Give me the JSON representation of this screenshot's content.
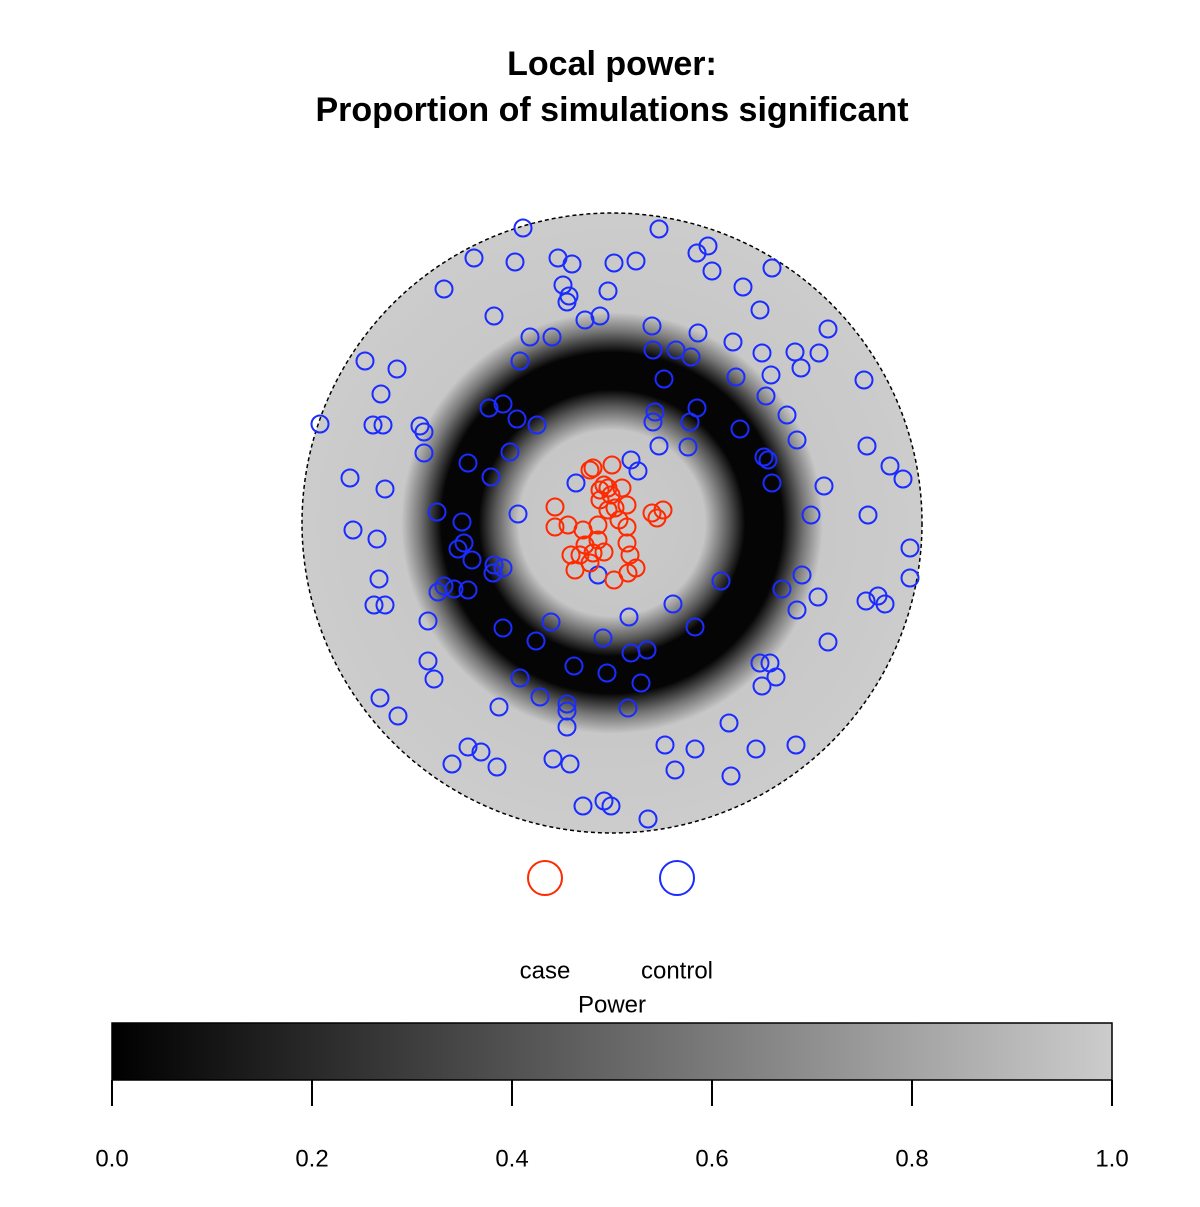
{
  "chart_data": {
    "type": "scatter",
    "title": "Local power:",
    "subtitle": "Proportion of simulations significant",
    "xlim": [
      -310,
      310
    ],
    "ylim": [
      -310,
      310
    ],
    "series": [
      {
        "name": "case",
        "color": "#ff2a00",
        "x": [
          -19,
          0,
          -8,
          10,
          -12,
          -1,
          -4,
          15,
          -57,
          -57,
          -44,
          -29,
          -14,
          7,
          15,
          40,
          51,
          45,
          -27,
          -14,
          -32,
          -41,
          -19,
          -8,
          15,
          18,
          2,
          16,
          24,
          -37,
          -22,
          -4,
          -12,
          3,
          -22
        ],
        "values": [
          55,
          58,
          38,
          35,
          23,
          28,
          13,
          18,
          16,
          -4,
          -2,
          -7,
          -2,
          3,
          -4,
          10,
          13,
          5,
          -22,
          -17,
          -32,
          -32,
          -30,
          -29,
          -20,
          -32,
          -57,
          -50,
          -45,
          -47,
          -40,
          35,
          33,
          15,
          53
        ]
      },
      {
        "name": "control",
        "color": "#1a2cff",
        "x": [
          -89,
          47,
          -138,
          -97,
          -54,
          -40,
          2,
          24,
          85,
          96,
          100,
          160,
          -49,
          -43,
          -168,
          -4,
          131,
          -118,
          -45,
          -27,
          -12,
          148,
          40,
          86,
          216,
          -82,
          -60,
          41,
          64,
          121,
          150,
          183,
          207,
          -247,
          -215,
          -92,
          52,
          79,
          124,
          159,
          189,
          252,
          -231,
          -123,
          -109,
          -95,
          -75,
          43,
          85,
          154,
          175,
          -292,
          -239,
          -229,
          -192,
          -188,
          41,
          78,
          128,
          185,
          255,
          -188,
          -144,
          -102,
          47,
          19,
          76,
          152,
          156,
          278,
          -262,
          -227,
          -121,
          -36,
          26,
          160,
          212,
          291,
          -175,
          -94,
          -150,
          199,
          256,
          -259,
          -235,
          -148,
          298,
          -140,
          -118,
          -119,
          -109,
          -233,
          -168,
          -174,
          -158,
          -14,
          61,
          109,
          170,
          190,
          206,
          254,
          266,
          273,
          298,
          -238,
          -227,
          -184,
          17,
          -109,
          -76,
          -61,
          83,
          185,
          216,
          -9,
          19,
          35,
          -184,
          -178,
          -38,
          -5,
          -92,
          29,
          148,
          158,
          150,
          164,
          -232,
          -214,
          -113,
          -72,
          -45,
          -45,
          -45,
          16,
          117,
          -144,
          -131,
          -160,
          -115,
          -59,
          -42,
          53,
          83,
          144,
          184,
          63,
          119,
          -29,
          -8,
          -1,
          36,
          -154,
          -144
        ],
        "values": [
          295,
          294,
          265,
          261,
          265,
          259,
          260,
          262,
          270,
          277,
          252,
          255,
          238,
          227,
          234,
          232,
          236,
          207,
          221,
          203,
          207,
          213,
          197,
          190,
          194,
          186,
          186,
          173,
          173,
          181,
          170,
          171,
          170,
          162,
          154,
          162,
          144,
          166,
          146,
          148,
          155,
          143,
          129,
          115,
          119,
          104,
          98,
          111,
          115,
          127,
          108,
          99,
          98,
          98,
          97,
          91,
          101,
          101,
          94,
          83,
          77,
          70,
          60,
          71,
          77,
          63,
          76,
          66,
          63,
          57,
          45,
          34,
          46,
          40,
          52,
          40,
          37,
          44,
          11,
          9,
          1,
          8,
          8,
          -7,
          -16,
          -20,
          -25,
          -37,
          -42,
          -50,
          -45,
          -56,
          -63,
          -69,
          -66,
          -52,
          -81,
          -58,
          -66,
          -52,
          -74,
          -78,
          -73,
          -81,
          -55,
          -82,
          -82,
          -98,
          -94,
          -105,
          -118,
          -99,
          -104,
          -87,
          -119,
          -115,
          -130,
          -127,
          -138,
          -156,
          -143,
          -150,
          -155,
          -160,
          -140,
          -140,
          -163,
          -154,
          -175,
          -193,
          -184,
          -174,
          -181,
          -188,
          -204,
          -185,
          -200,
          -224,
          -229,
          -241,
          -244,
          -236,
          -241,
          -222,
          -226,
          -226,
          -222,
          -247,
          -253,
          -283,
          -278,
          -283,
          -296,
          -26,
          -67
        ]
      }
    ],
    "colorbar": {
      "label": "Power",
      "lim": [
        0,
        1
      ],
      "colors": [
        "#000000",
        "#cccccc"
      ],
      "ticks": [
        {
          "value": 0,
          "label": "0.0"
        },
        0.2,
        0.4,
        0.6,
        0.8,
        {
          "value": 1,
          "label": "1.0"
        }
      ]
    }
  }
}
